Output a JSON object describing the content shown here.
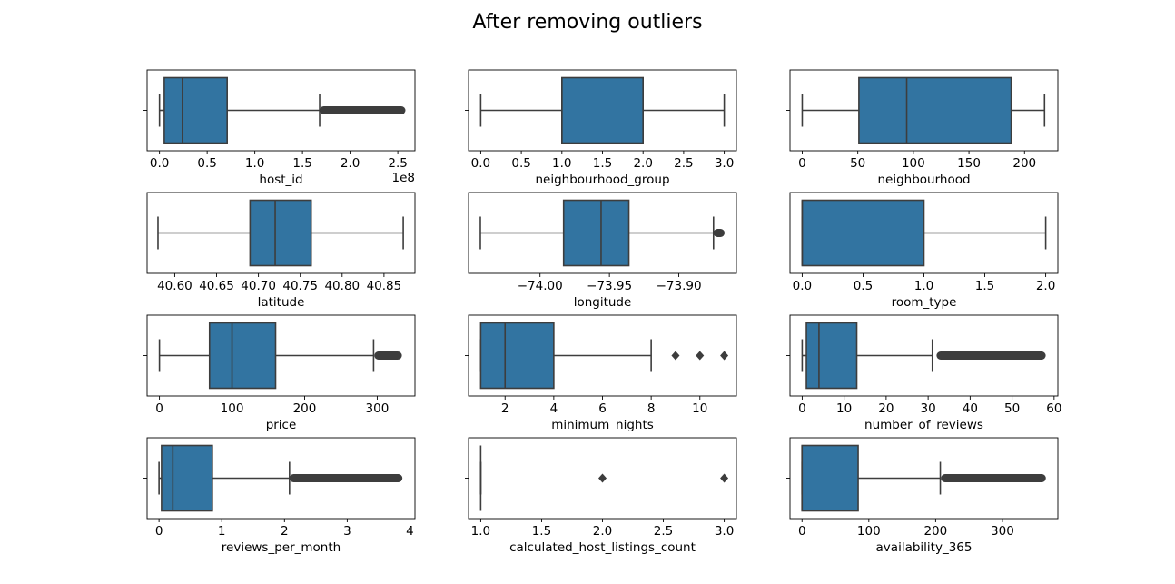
{
  "figure": {
    "title": "After removing outliers"
  },
  "colors": {
    "box_fill": "#3274a1",
    "line": "#3d3d3d",
    "frame": "#000000"
  },
  "chart_data": [
    {
      "type": "box",
      "xlabel": "host_id",
      "offset_text": "1e8",
      "xlim": [
        -0.13,
        2.68
      ],
      "ticks": [
        0.0,
        0.5,
        1.0,
        1.5,
        2.0,
        2.5
      ],
      "tick_labels": [
        "0.0",
        "0.5",
        "1.0",
        "1.5",
        "2.0",
        "2.5"
      ],
      "min": 0.0,
      "q1": 0.05,
      "median": 0.24,
      "q3": 0.71,
      "max": 1.68,
      "outliers_range": [
        1.68,
        2.58
      ]
    },
    {
      "type": "box",
      "xlabel": "neighbourhood_group",
      "xlim": [
        -0.15,
        3.15
      ],
      "ticks": [
        0.0,
        0.5,
        1.0,
        1.5,
        2.0,
        2.5,
        3.0
      ],
      "tick_labels": [
        "0.0",
        "0.5",
        "1.0",
        "1.5",
        "2.0",
        "2.5",
        "3.0"
      ],
      "min": 0.0,
      "q1": 1.0,
      "median": 1.0,
      "q3": 2.0,
      "max": 3.0
    },
    {
      "type": "box",
      "xlabel": "neighbourhood",
      "xlim": [
        -11,
        230
      ],
      "ticks": [
        0,
        50,
        100,
        150,
        200
      ],
      "tick_labels": [
        "0",
        "50",
        "100",
        "150",
        "200"
      ],
      "min": 0,
      "q1": 51,
      "median": 94,
      "q3": 188,
      "max": 218
    },
    {
      "type": "box",
      "xlabel": "latitude",
      "xlim": [
        40.567,
        40.887
      ],
      "ticks": [
        40.6,
        40.65,
        40.7,
        40.75,
        40.8,
        40.85
      ],
      "tick_labels": [
        "40.60",
        "40.65",
        "40.70",
        "40.75",
        "40.80",
        "40.85"
      ],
      "min": 40.58,
      "q1": 40.69,
      "median": 40.72,
      "q3": 40.763,
      "max": 40.873
    },
    {
      "type": "box",
      "xlabel": "longitude",
      "xlim": [
        -74.0515,
        -73.8585
      ],
      "ticks": [
        -74.0,
        -73.95,
        -73.9
      ],
      "tick_labels": [
        "−74.00",
        "−73.95",
        "−73.90"
      ],
      "min": -74.043,
      "q1": -73.983,
      "median": -73.956,
      "q3": -73.936,
      "max": -73.875,
      "outliers_range": [
        -73.875,
        -73.867
      ]
    },
    {
      "type": "box",
      "xlabel": "room_type",
      "xlim": [
        -0.1,
        2.1
      ],
      "ticks": [
        0.0,
        0.5,
        1.0,
        1.5,
        2.0
      ],
      "tick_labels": [
        "0.0",
        "0.5",
        "1.0",
        "1.5",
        "2.0"
      ],
      "min": 0.0,
      "q1": 0.0,
      "median": 0.0,
      "q3": 1.0,
      "max": 2.0
    },
    {
      "type": "box",
      "xlabel": "price",
      "xlim": [
        -17,
        352
      ],
      "ticks": [
        0,
        100,
        200,
        300
      ],
      "tick_labels": [
        "0",
        "100",
        "200",
        "300"
      ],
      "min": 0,
      "q1": 69,
      "median": 100,
      "q3": 160,
      "max": 295,
      "outliers_range": [
        296,
        334
      ]
    },
    {
      "type": "box",
      "xlabel": "minimum_nights",
      "xlim": [
        0.5,
        11.5
      ],
      "ticks": [
        2,
        4,
        6,
        8,
        10
      ],
      "tick_labels": [
        "2",
        "4",
        "6",
        "8",
        "10"
      ],
      "min": 1,
      "q1": 1,
      "median": 2,
      "q3": 4,
      "max": 8,
      "outliers": [
        9,
        10,
        11
      ]
    },
    {
      "type": "box",
      "xlabel": "number_of_reviews",
      "xlim": [
        -2.9,
        60.9
      ],
      "ticks": [
        0,
        10,
        20,
        30,
        40,
        50,
        60
      ],
      "tick_labels": [
        "0",
        "10",
        "20",
        "30",
        "40",
        "50",
        "60"
      ],
      "min": 0,
      "q1": 1,
      "median": 4,
      "q3": 13,
      "max": 31,
      "outliers_range": [
        32,
        58
      ]
    },
    {
      "type": "box",
      "xlabel": "reviews_per_month",
      "xlim": [
        -0.19,
        4.08
      ],
      "ticks": [
        0,
        1,
        2,
        3,
        4
      ],
      "tick_labels": [
        "0",
        "1",
        "2",
        "3",
        "4"
      ],
      "min": 0.0,
      "q1": 0.04,
      "median": 0.22,
      "q3": 0.85,
      "max": 2.08,
      "outliers_range": [
        2.08,
        3.88
      ]
    },
    {
      "type": "box",
      "xlabel": "calculated_host_listings_count",
      "xlim": [
        0.9,
        3.1
      ],
      "ticks": [
        1.0,
        1.5,
        2.0,
        2.5,
        3.0
      ],
      "tick_labels": [
        "1.0",
        "1.5",
        "2.0",
        "2.5",
        "3.0"
      ],
      "min": 1,
      "q1": 1,
      "median": 1,
      "q3": 1,
      "max": 1,
      "outliers": [
        2,
        3
      ]
    },
    {
      "type": "box",
      "xlabel": "availability_365",
      "xlim": [
        -18,
        383
      ],
      "ticks": [
        0,
        100,
        200,
        300
      ],
      "tick_labels": [
        "0",
        "100",
        "200",
        "300"
      ],
      "min": 0,
      "q1": 0,
      "median": 0,
      "q3": 84,
      "max": 207,
      "outliers_range": [
        208,
        365
      ]
    }
  ]
}
